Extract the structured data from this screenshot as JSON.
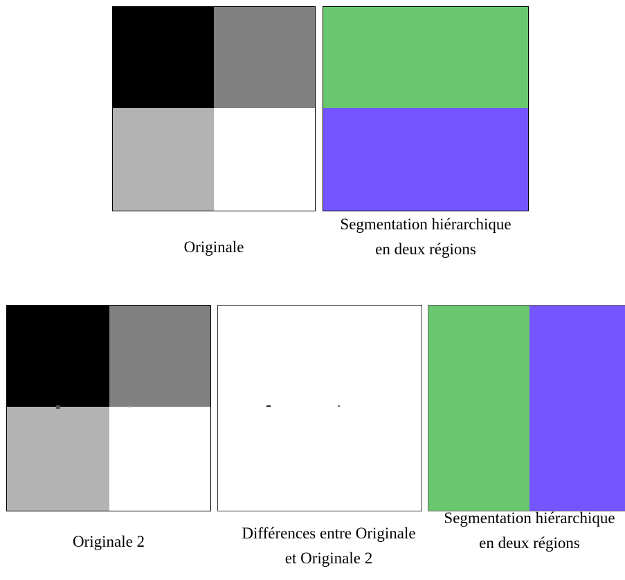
{
  "panels": {
    "originale": {
      "caption": "Originale",
      "quadrants": [
        "#000000",
        "#808080",
        "#b3b3b3",
        "#ffffff"
      ]
    },
    "segmentation_1": {
      "caption": "Segmentation hiérarchique en deux régions",
      "regions": [
        "#69c76f",
        "#7455ff"
      ]
    },
    "originale_2": {
      "caption": "Originale 2",
      "quadrants": [
        "#000000",
        "#808080",
        "#b3b3b3",
        "#ffffff"
      ]
    },
    "differences": {
      "caption": "Différences entre Originale et Originale 2"
    },
    "segmentation_2": {
      "caption": "Segmentation hiérarchique en deux régions",
      "regions": [
        "#69c76f",
        "#7455ff"
      ]
    }
  }
}
